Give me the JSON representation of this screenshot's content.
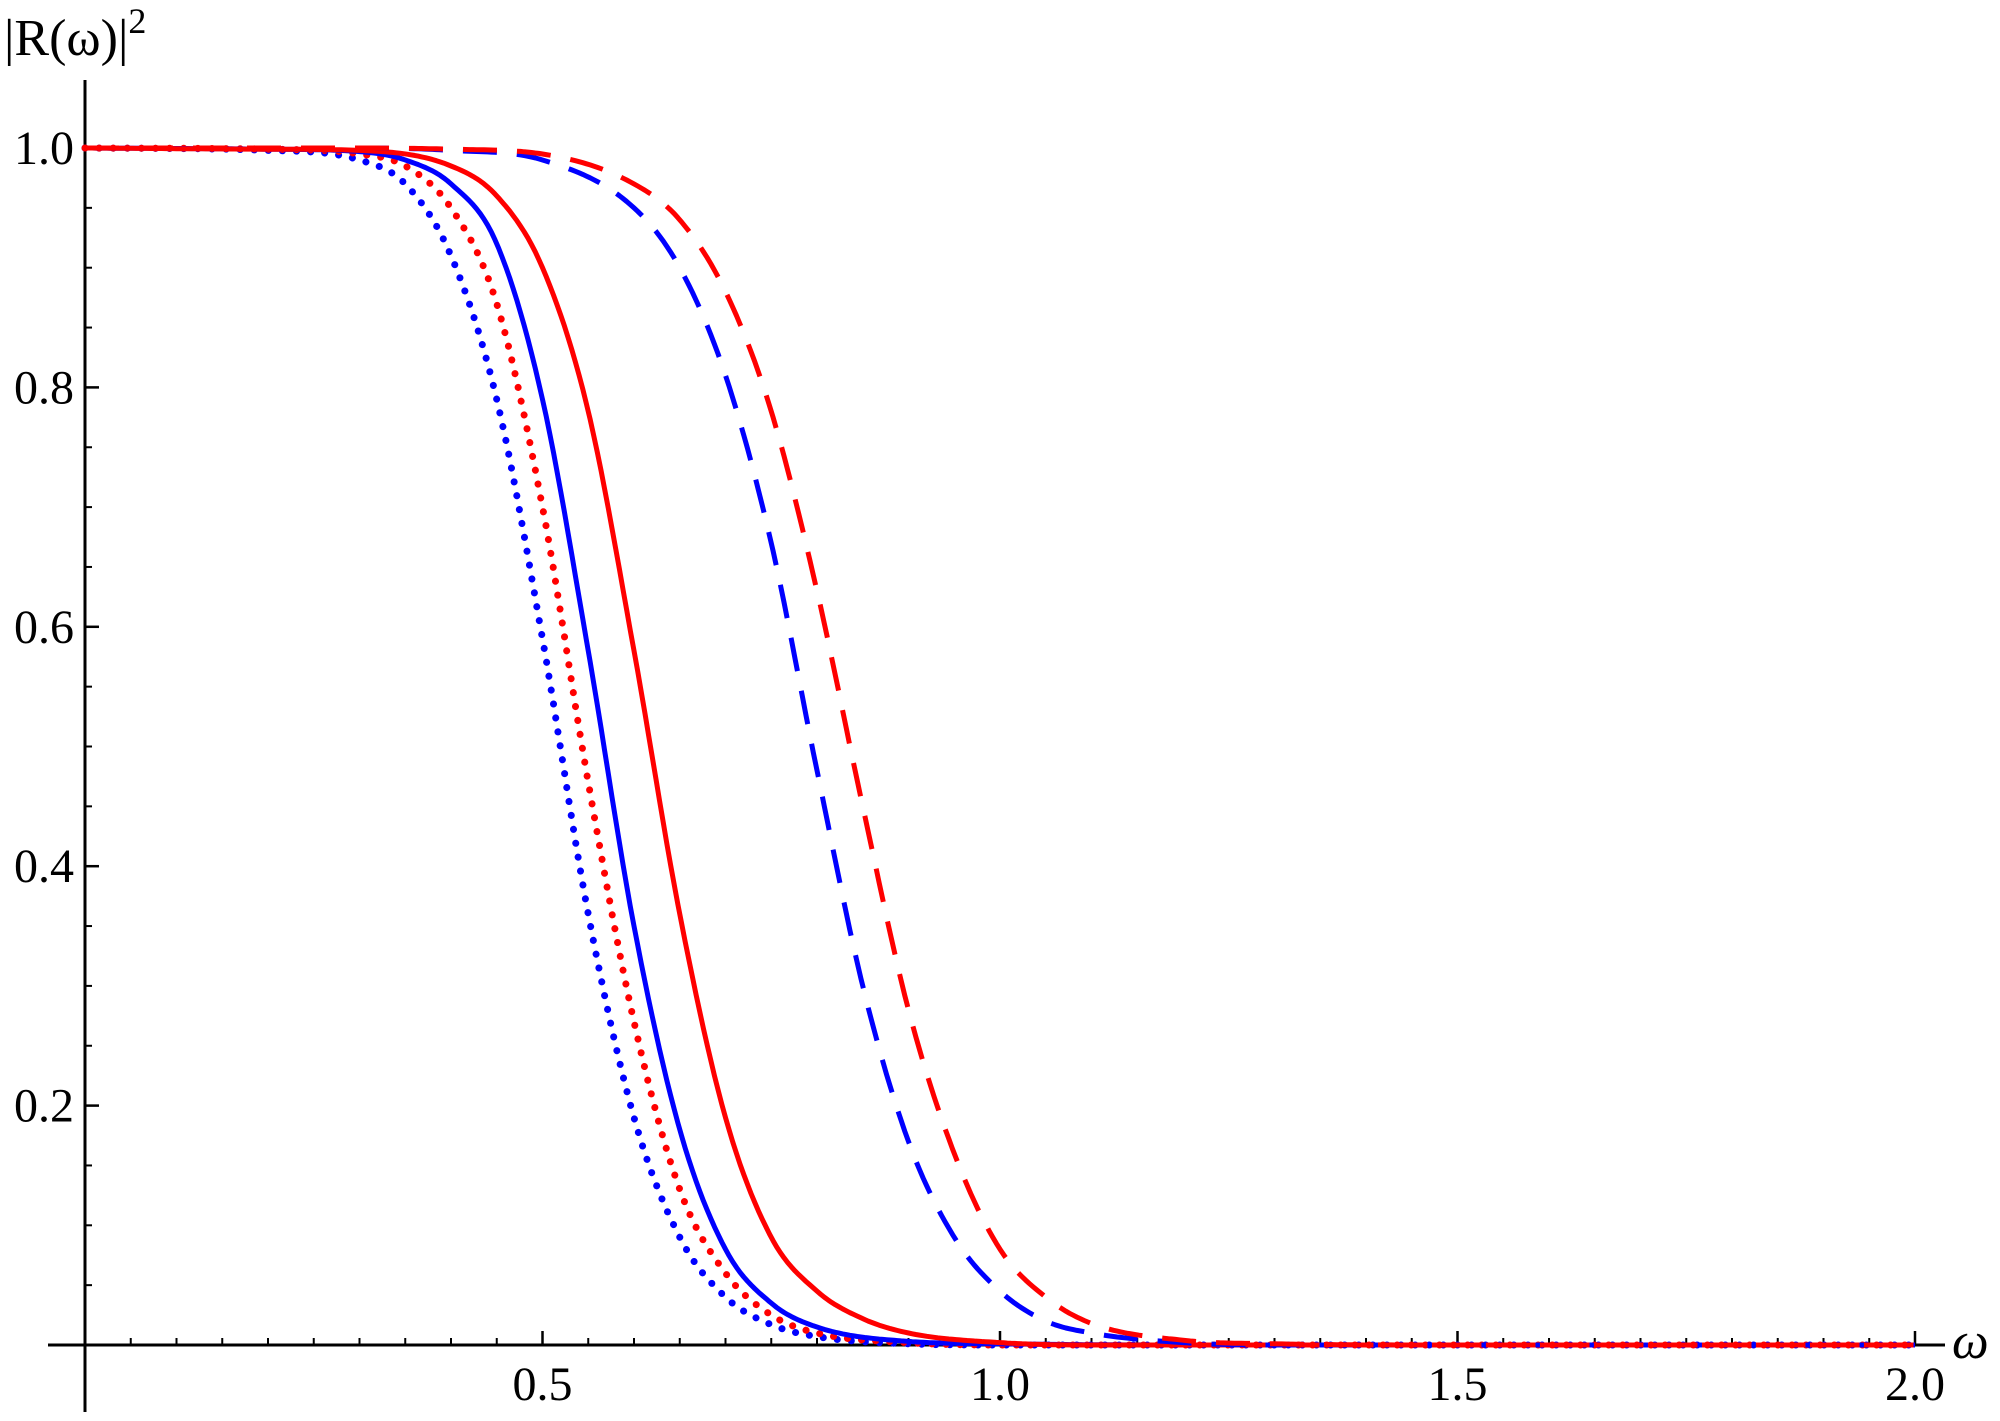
{
  "chart_data": {
    "type": "line",
    "xlabel": "ω",
    "ylabel_main": "|R(ω)|",
    "ylabel_sup": "2",
    "xlim": [
      0,
      2.0
    ],
    "ylim": [
      0,
      1.0
    ],
    "x_ticks": [
      {
        "value": 0.5,
        "label": "0.5"
      },
      {
        "value": 1.0,
        "label": "1.0"
      },
      {
        "value": 1.5,
        "label": "1.5"
      },
      {
        "value": 2.0,
        "label": "2.0"
      }
    ],
    "y_ticks": [
      {
        "value": 0.2,
        "label": "0.2"
      },
      {
        "value": 0.4,
        "label": "0.4"
      },
      {
        "value": 0.6,
        "label": "0.6"
      },
      {
        "value": 0.8,
        "label": "0.8"
      },
      {
        "value": 1.0,
        "label": "1.0"
      }
    ],
    "grid": false,
    "legend": "none",
    "colors": {
      "red": "#ff0000",
      "blue": "#0000ff",
      "axis": "#000000"
    },
    "series": [
      {
        "color": "#0000ff",
        "style": "dotted",
        "x": [
          0,
          0.2,
          0.3,
          0.35,
          0.4,
          0.45,
          0.5,
          0.55,
          0.6,
          0.65,
          0.7,
          0.75,
          0.8,
          0.9,
          1.0,
          1.2,
          1.5,
          2.0
        ],
        "y": [
          1.0,
          0.998,
          0.99,
          0.97,
          0.91,
          0.79,
          0.59,
          0.36,
          0.19,
          0.09,
          0.04,
          0.017,
          0.007,
          0.001,
          0,
          0,
          0,
          0
        ]
      },
      {
        "color": "#ff0000",
        "style": "dotted",
        "x": [
          0,
          0.2,
          0.3,
          0.35,
          0.4,
          0.45,
          0.5,
          0.55,
          0.6,
          0.65,
          0.7,
          0.75,
          0.8,
          0.9,
          1.0,
          1.2,
          1.5,
          2.0
        ],
        "y": [
          1.0,
          0.999,
          0.995,
          0.985,
          0.95,
          0.87,
          0.7,
          0.47,
          0.27,
          0.13,
          0.06,
          0.025,
          0.01,
          0.002,
          0,
          0,
          0,
          0
        ]
      },
      {
        "color": "#0000ff",
        "style": "solid",
        "x": [
          0,
          0.2,
          0.3,
          0.35,
          0.4,
          0.45,
          0.5,
          0.55,
          0.6,
          0.65,
          0.7,
          0.75,
          0.8,
          0.9,
          1.0,
          1.2,
          1.5,
          2.0
        ],
        "y": [
          1.0,
          0.999,
          0.997,
          0.99,
          0.97,
          0.92,
          0.79,
          0.58,
          0.35,
          0.18,
          0.08,
          0.035,
          0.015,
          0.003,
          0.001,
          0,
          0,
          0
        ]
      },
      {
        "color": "#ff0000",
        "style": "solid",
        "x": [
          0,
          0.2,
          0.3,
          0.4,
          0.45,
          0.5,
          0.55,
          0.6,
          0.65,
          0.7,
          0.75,
          0.8,
          0.85,
          0.9,
          1.0,
          1.1,
          1.2,
          1.5,
          2.0
        ],
        "y": [
          1.0,
          0.999,
          0.998,
          0.985,
          0.96,
          0.9,
          0.78,
          0.58,
          0.36,
          0.19,
          0.09,
          0.045,
          0.022,
          0.01,
          0.002,
          0,
          0,
          0,
          0
        ]
      },
      {
        "color": "#0000ff",
        "style": "dashed",
        "x": [
          0,
          0.3,
          0.4,
          0.5,
          0.6,
          0.65,
          0.7,
          0.75,
          0.8,
          0.85,
          0.9,
          0.95,
          1.0,
          1.05,
          1.1,
          1.2,
          1.3,
          1.5,
          2.0
        ],
        "y": [
          1.0,
          1.0,
          0.998,
          0.99,
          0.95,
          0.9,
          0.81,
          0.67,
          0.48,
          0.3,
          0.17,
          0.09,
          0.045,
          0.02,
          0.01,
          0.002,
          0,
          0,
          0
        ]
      },
      {
        "color": "#ff0000",
        "style": "dashed",
        "x": [
          0,
          0.3,
          0.4,
          0.5,
          0.6,
          0.65,
          0.7,
          0.75,
          0.8,
          0.85,
          0.9,
          0.95,
          1.0,
          1.05,
          1.1,
          1.2,
          1.3,
          1.5,
          2.0
        ],
        "y": [
          1.0,
          1.0,
          0.999,
          0.995,
          0.97,
          0.94,
          0.88,
          0.78,
          0.63,
          0.45,
          0.28,
          0.16,
          0.08,
          0.04,
          0.018,
          0.004,
          0.001,
          0,
          0
        ]
      }
    ]
  }
}
